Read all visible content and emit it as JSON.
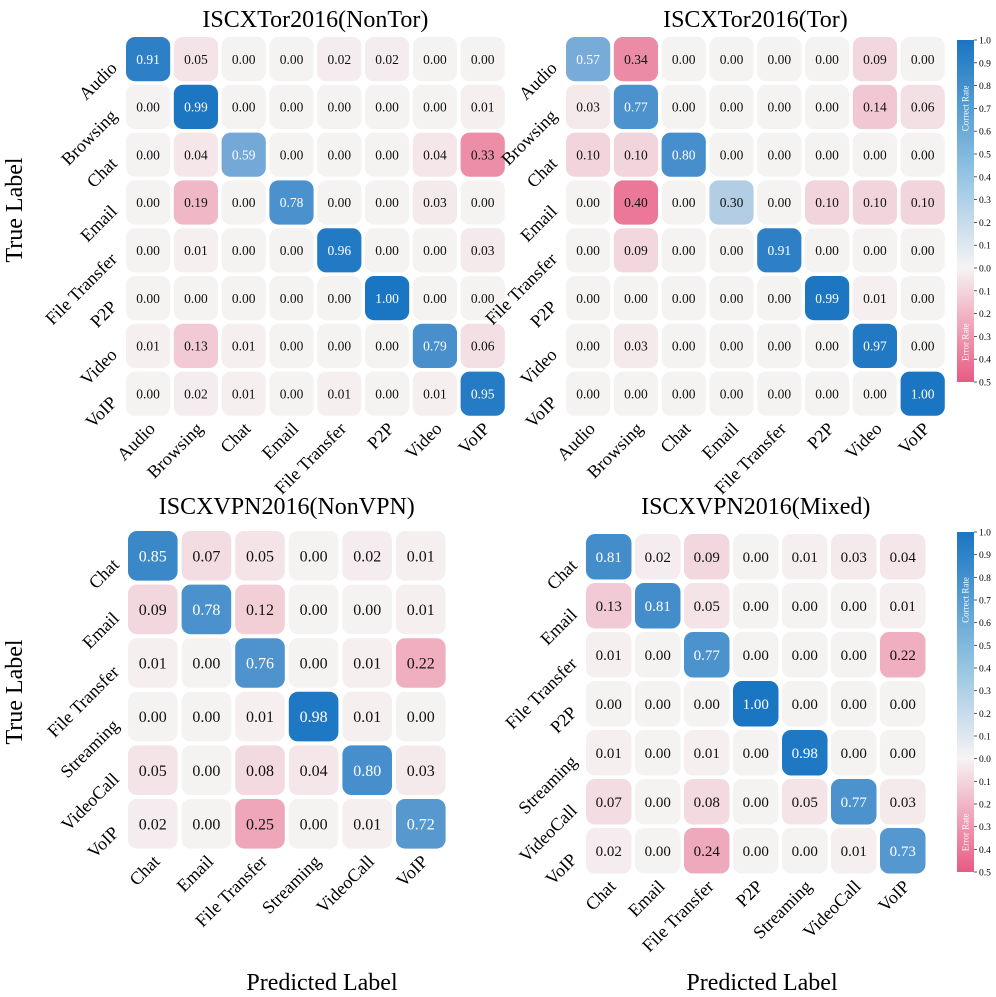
{
  "figure": {
    "ylabel": "True Label",
    "xlabel": "Predicted Label",
    "colorbar": {
      "correct_label": "Correct Rate",
      "error_label": "Error Rate",
      "correct_ticks": [
        "1.0",
        "0.9",
        "0.8",
        "0.7",
        "0.6",
        "0.5",
        "0.4",
        "0.3",
        "0.2",
        "0.1"
      ],
      "zero_tick": "0.0",
      "error_ticks": [
        "0.1",
        "0.2",
        "0.3",
        "0.4",
        "0.5"
      ],
      "colors": {
        "correct": "#1a75c2",
        "error": "#e85a82",
        "neutral": "#f5f2f2"
      }
    }
  },
  "chart_data": [
    {
      "type": "heatmap",
      "title": "ISCXTor2016(NonTor)",
      "labels": [
        "Audio",
        "Browsing",
        "Chat",
        "Email",
        "File Transfer",
        "P2P",
        "Video",
        "VoIP"
      ],
      "matrix": [
        [
          0.91,
          0.05,
          0.0,
          0.0,
          0.02,
          0.02,
          0.0,
          0.0
        ],
        [
          0.0,
          0.99,
          0.0,
          0.0,
          0.0,
          0.0,
          0.0,
          0.01
        ],
        [
          0.0,
          0.04,
          0.59,
          0.0,
          0.0,
          0.0,
          0.04,
          0.33
        ],
        [
          0.0,
          0.19,
          0.0,
          0.78,
          0.0,
          0.0,
          0.03,
          0.0
        ],
        [
          0.0,
          0.01,
          0.0,
          0.0,
          0.96,
          0.0,
          0.0,
          0.03
        ],
        [
          0.0,
          0.0,
          0.0,
          0.0,
          0.0,
          1.0,
          0.0,
          0.0
        ],
        [
          0.01,
          0.13,
          0.01,
          0.0,
          0.0,
          0.0,
          0.79,
          0.06
        ],
        [
          0.0,
          0.02,
          0.01,
          0.0,
          0.01,
          0.0,
          0.01,
          0.95
        ]
      ]
    },
    {
      "type": "heatmap",
      "title": "ISCXTor2016(Tor)",
      "labels": [
        "Audio",
        "Browsing",
        "Chat",
        "Email",
        "File Transfer",
        "P2P",
        "Video",
        "VoIP"
      ],
      "matrix": [
        [
          0.57,
          0.34,
          0.0,
          0.0,
          0.0,
          0.0,
          0.09,
          0.0
        ],
        [
          0.03,
          0.77,
          0.0,
          0.0,
          0.0,
          0.0,
          0.14,
          0.06
        ],
        [
          0.1,
          0.1,
          0.8,
          0.0,
          0.0,
          0.0,
          0.0,
          0.0
        ],
        [
          0.0,
          0.4,
          0.0,
          0.3,
          0.0,
          0.1,
          0.1,
          0.1
        ],
        [
          0.0,
          0.09,
          0.0,
          0.0,
          0.91,
          0.0,
          0.0,
          0.0
        ],
        [
          0.0,
          0.0,
          0.0,
          0.0,
          0.0,
          0.99,
          0.01,
          0.0
        ],
        [
          0.0,
          0.03,
          0.0,
          0.0,
          0.0,
          0.0,
          0.97,
          0.0
        ],
        [
          0.0,
          0.0,
          0.0,
          0.0,
          0.0,
          0.0,
          0.0,
          1.0
        ]
      ]
    },
    {
      "type": "heatmap",
      "title": "ISCXVPN2016(NonVPN)",
      "labels": [
        "Chat",
        "Email",
        "File Transfer",
        "Streaming",
        "VideoCall",
        "VoIP"
      ],
      "matrix": [
        [
          0.85,
          0.07,
          0.05,
          0.0,
          0.02,
          0.01
        ],
        [
          0.09,
          0.78,
          0.12,
          0.0,
          0.0,
          0.01
        ],
        [
          0.01,
          0.0,
          0.76,
          0.0,
          0.01,
          0.22
        ],
        [
          0.0,
          0.0,
          0.01,
          0.98,
          0.01,
          0.0
        ],
        [
          0.05,
          0.0,
          0.08,
          0.04,
          0.8,
          0.03
        ],
        [
          0.02,
          0.0,
          0.25,
          0.0,
          0.01,
          0.72
        ]
      ]
    },
    {
      "type": "heatmap",
      "title": "ISCXVPN2016(Mixed)",
      "labels": [
        "Chat",
        "Email",
        "File Transfer",
        "P2P",
        "Streaming",
        "VideoCall",
        "VoIP"
      ],
      "matrix": [
        [
          0.81,
          0.02,
          0.09,
          0.0,
          0.01,
          0.03,
          0.04
        ],
        [
          0.13,
          0.81,
          0.05,
          0.0,
          0.0,
          0.0,
          0.01
        ],
        [
          0.01,
          0.0,
          0.77,
          0.0,
          0.0,
          0.0,
          0.22
        ],
        [
          0.0,
          0.0,
          0.0,
          1.0,
          0.0,
          0.0,
          0.0
        ],
        [
          0.01,
          0.0,
          0.01,
          0.0,
          0.98,
          0.0,
          0.0
        ],
        [
          0.07,
          0.0,
          0.08,
          0.0,
          0.05,
          0.77,
          0.03
        ],
        [
          0.02,
          0.0,
          0.24,
          0.0,
          0.0,
          0.01,
          0.73
        ]
      ]
    }
  ]
}
